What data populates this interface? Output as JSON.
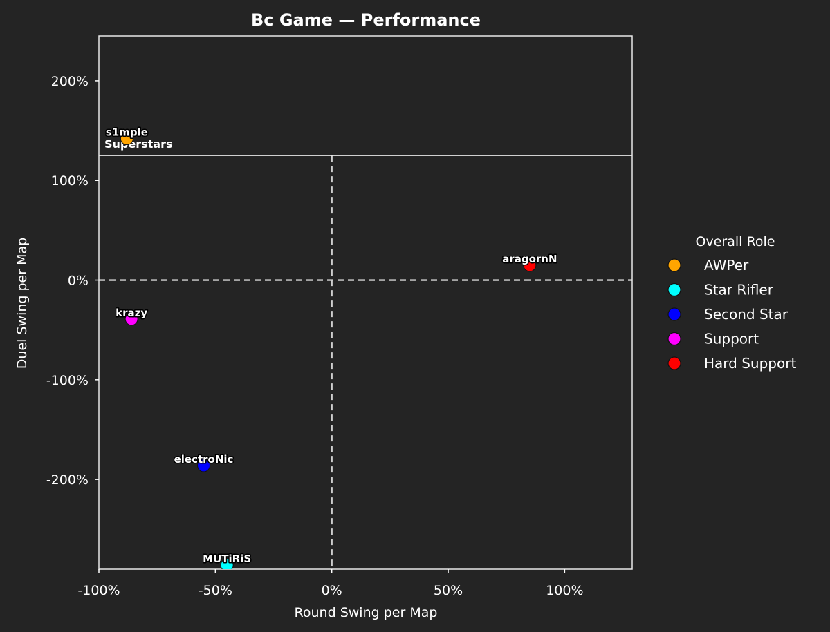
{
  "chart_data": {
    "type": "scatter",
    "title": "Bc Game — Performance",
    "xlabel": "Round Swing per Map",
    "ylabel": "Duel Swing per Map",
    "xlim": [
      -100,
      129
    ],
    "ylim": [
      -290,
      245
    ],
    "xticks": [
      -100,
      -50,
      0,
      50,
      100
    ],
    "yticks": [
      -200,
      -100,
      0,
      100,
      200
    ],
    "tick_suffix": "%",
    "reference_lines": {
      "x": 0,
      "y": 0,
      "style": "dashed"
    },
    "zones": [
      {
        "label": "Superstars",
        "y_threshold": 125
      }
    ],
    "points": [
      {
        "name": "s1mple",
        "x": -88,
        "y": 142,
        "role": "AWPer"
      },
      {
        "name": "aragornN",
        "x": 85,
        "y": 15,
        "role": "Hard Support"
      },
      {
        "name": "krazy",
        "x": -86,
        "y": -39,
        "role": "Support"
      },
      {
        "name": "electroNic",
        "x": -55,
        "y": -186,
        "role": "Second Star"
      },
      {
        "name": "MUTiRiS",
        "x": -45,
        "y": -286,
        "role": "Star Rifler"
      }
    ],
    "legend": {
      "title": "Overall Role",
      "position": "right",
      "entries": [
        {
          "label": "AWPer",
          "color": "#FFA500"
        },
        {
          "label": "Star Rifler",
          "color": "#00FFFF"
        },
        {
          "label": "Second Star",
          "color": "#0000FF"
        },
        {
          "label": "Support",
          "color": "#FF00FF"
        },
        {
          "label": "Hard Support",
          "color": "#FF0000"
        }
      ]
    }
  }
}
